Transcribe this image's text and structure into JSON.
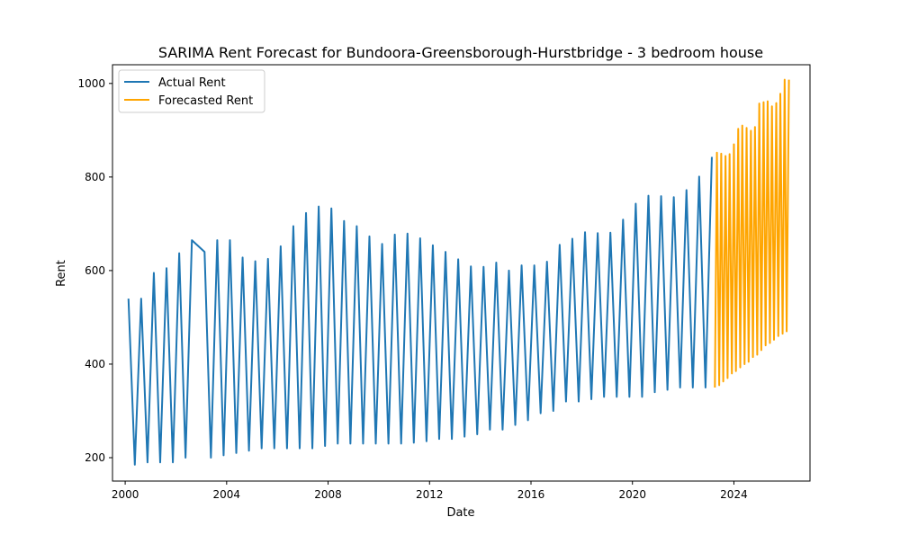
{
  "chart_data": {
    "type": "line",
    "title": "SARIMA Rent Forecast for Bundoora-Greensborough-Hurstbridge - 3 bedroom house",
    "xlabel": "Date",
    "ylabel": "Rent",
    "xlim": [
      1999.5,
      2027.0
    ],
    "ylim": [
      150,
      1040
    ],
    "x_ticks": [
      2000,
      2004,
      2008,
      2012,
      2016,
      2020,
      2024
    ],
    "x_tick_labels": [
      "2000",
      "2004",
      "2008",
      "2012",
      "2016",
      "2020",
      "2024"
    ],
    "y_ticks": [
      200,
      400,
      600,
      800,
      1000
    ],
    "y_tick_labels": [
      "200",
      "400",
      "600",
      "800",
      "1000"
    ],
    "grid": false,
    "legend_position": "upper-left",
    "series": [
      {
        "name": "Actual Rent",
        "color": "#1f77b4",
        "x": [
          2000.13,
          2000.38,
          2000.63,
          2000.88,
          2001.13,
          2001.38,
          2001.63,
          2001.88,
          2002.13,
          2002.38,
          2002.63,
          2003.13,
          2003.38,
          2003.63,
          2003.88,
          2004.13,
          2004.38,
          2004.63,
          2004.88,
          2005.13,
          2005.38,
          2005.63,
          2005.88,
          2006.13,
          2006.38,
          2006.63,
          2006.88,
          2007.13,
          2007.38,
          2007.63,
          2007.88,
          2008.13,
          2008.38,
          2008.63,
          2008.88,
          2009.13,
          2009.38,
          2009.63,
          2009.88,
          2010.13,
          2010.38,
          2010.63,
          2010.88,
          2011.13,
          2011.38,
          2011.63,
          2011.88,
          2012.13,
          2012.38,
          2012.63,
          2012.88,
          2013.13,
          2013.38,
          2013.63,
          2013.88,
          2014.13,
          2014.38,
          2014.63,
          2014.88,
          2015.13,
          2015.38,
          2015.63,
          2015.88,
          2016.13,
          2016.38,
          2016.63,
          2016.88,
          2017.13,
          2017.38,
          2017.63,
          2017.88,
          2018.13,
          2018.38,
          2018.63,
          2018.88,
          2019.13,
          2019.38,
          2019.63,
          2019.88,
          2020.13,
          2020.38,
          2020.63,
          2020.88,
          2021.13,
          2021.38,
          2021.63,
          2021.88,
          2022.13,
          2022.38,
          2022.63,
          2022.88,
          2023.13
        ],
        "values": [
          540,
          185,
          540,
          190,
          595,
          190,
          605,
          190,
          637,
          200,
          665,
          640,
          200,
          665,
          205,
          665,
          210,
          628,
          215,
          620,
          220,
          625,
          220,
          652,
          220,
          695,
          220,
          723,
          220,
          737,
          225,
          733,
          230,
          706,
          230,
          695,
          230,
          673,
          230,
          657,
          230,
          677,
          230,
          679,
          232,
          669,
          235,
          654,
          240,
          640,
          240,
          624,
          245,
          609,
          250,
          608,
          260,
          617,
          260,
          600,
          270,
          611,
          280,
          611,
          295,
          619,
          300,
          655,
          320,
          668,
          320,
          682,
          325,
          680,
          330,
          681,
          330,
          709,
          330,
          743,
          330,
          760,
          340,
          759,
          345,
          757,
          350,
          772,
          350,
          801,
          350,
          843
        ]
      },
      {
        "name": "Forecasted Rent",
        "color": "#ffa500",
        "x": [
          2023.25,
          2023.33,
          2023.42,
          2023.5,
          2023.58,
          2023.67,
          2023.75,
          2023.83,
          2023.92,
          2024.0,
          2024.08,
          2024.17,
          2024.25,
          2024.33,
          2024.42,
          2024.5,
          2024.58,
          2024.67,
          2024.75,
          2024.83,
          2024.92,
          2025.0,
          2025.08,
          2025.17,
          2025.25,
          2025.33,
          2025.42,
          2025.5,
          2025.58,
          2025.67,
          2025.75,
          2025.83,
          2025.92,
          2026.0,
          2026.08,
          2026.17
        ],
        "values": [
          350,
          852,
          355,
          850,
          363,
          845,
          370,
          849,
          380,
          870,
          385,
          903,
          393,
          910,
          400,
          905,
          405,
          899,
          415,
          907,
          420,
          957,
          430,
          960,
          440,
          962,
          445,
          951,
          452,
          958,
          460,
          978,
          465,
          1008,
          470,
          1008
        ]
      }
    ]
  }
}
